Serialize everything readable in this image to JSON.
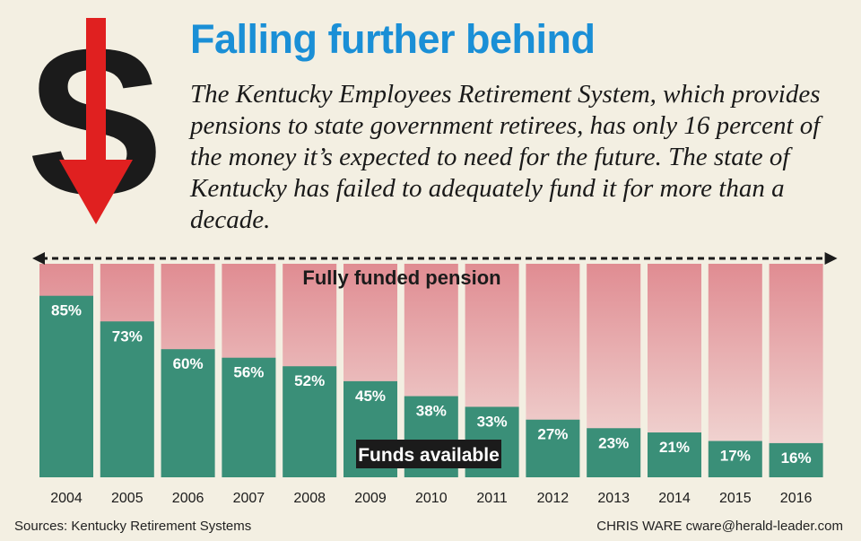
{
  "title": "Falling further behind",
  "subtitle": "The Kentucky Employees Retirement System, which provides pensions to state government retirees, has only 16 percent of the money it’s expected to need for the future. The state of Kentucky has failed to adequately fund it for more than a decade.",
  "icon": "dollar-sign-down-arrow-icon",
  "colors": {
    "title": "#1a8fd6",
    "funded_bar": "#3a8f78",
    "unfunded_top": "#e08c92",
    "unfunded_bottom": "#f3e0dc",
    "arrow": "#e02020",
    "background": "#f3efe2"
  },
  "chart_data": {
    "type": "bar",
    "title": "",
    "categories": [
      "2004",
      "2005",
      "2006",
      "2007",
      "2008",
      "2009",
      "2010",
      "2011",
      "2012",
      "2013",
      "2014",
      "2015",
      "2016"
    ],
    "values": [
      85,
      73,
      60,
      56,
      52,
      45,
      38,
      33,
      27,
      23,
      21,
      17,
      16
    ],
    "value_labels": [
      "85%",
      "73%",
      "60%",
      "56%",
      "52%",
      "45%",
      "38%",
      "33%",
      "27%",
      "23%",
      "21%",
      "17%",
      "16%"
    ],
    "ylim": [
      0,
      100
    ],
    "xlabel": "",
    "ylabel": "",
    "grid": false,
    "annotations": {
      "full_line": "Fully funded pension",
      "funds": "Funds available"
    }
  },
  "footer": {
    "sources": "Sources: Kentucky Retirement Systems",
    "credit": "CHRIS WARE cware@herald-leader.com"
  }
}
